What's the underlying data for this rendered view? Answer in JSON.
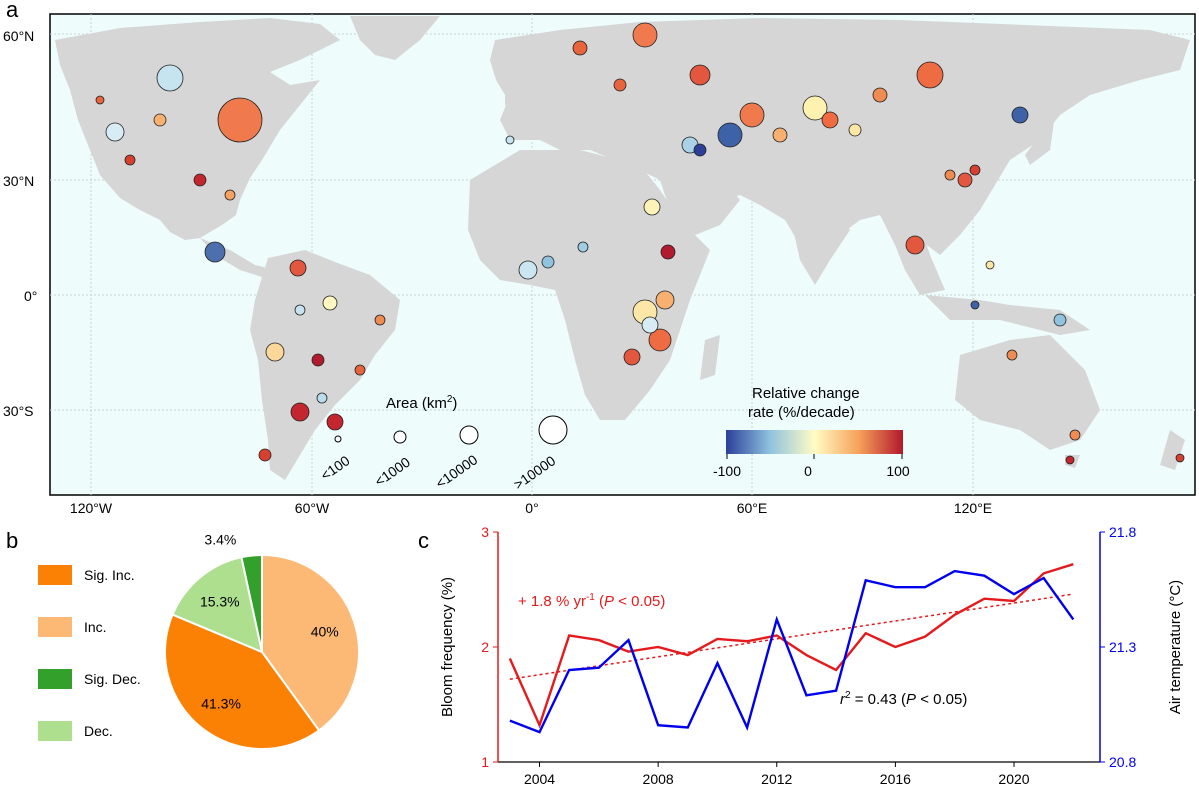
{
  "panel_labels": {
    "a": "a",
    "b": "b",
    "c": "c"
  },
  "map": {
    "lat_labels": [
      "60°N",
      "30°N",
      "0°",
      "30°S"
    ],
    "lon_labels": [
      "120°W",
      "60°W",
      "0°",
      "60°E",
      "120°E"
    ],
    "area_legend": {
      "title": "Area (km",
      "title_sup": "2",
      "title_end": ")",
      "sizes": [
        "<100",
        "<1000",
        "<10000",
        ">10000"
      ]
    },
    "color_legend": {
      "title_line1": "Relative change",
      "title_line2": "rate (%/decade)",
      "ticks": [
        "-100",
        "0",
        "100"
      ]
    },
    "colors": {
      "ocean": "#eefcfc",
      "land": "#d6d6d6",
      "strong_dec": "#2b3f99",
      "dec": "#8fc3df",
      "neutral": "#fffcc4",
      "inc": "#f5a25a",
      "strong_inc": "#b2182b"
    }
  },
  "chart_data": [
    {
      "type": "pie",
      "legend": [
        "Sig. Inc.",
        "Inc.",
        "Sig. Dec.",
        "Dec."
      ],
      "slices": [
        {
          "label": "Inc.",
          "value": 40.0,
          "text": "40%",
          "color": "#fbb975"
        },
        {
          "label": "Sig. Inc.",
          "value": 41.3,
          "text": "41.3%",
          "color": "#fb8104"
        },
        {
          "label": "Dec.",
          "value": 15.3,
          "text": "15.3%",
          "color": "#addf8f"
        },
        {
          "label": "Sig. Dec.",
          "value": 3.4,
          "text": "3.4%",
          "color": "#33a02c"
        }
      ]
    },
    {
      "type": "line",
      "x": [
        2003,
        2004,
        2005,
        2006,
        2007,
        2008,
        2009,
        2010,
        2011,
        2012,
        2013,
        2014,
        2015,
        2016,
        2017,
        2018,
        2019,
        2020,
        2021,
        2022
      ],
      "xticks": [
        2004,
        2008,
        2012,
        2016,
        2020
      ],
      "series": [
        {
          "name": "Bloom frequency",
          "axis": "left",
          "color": "#e41a1c",
          "values": [
            1.9,
            1.32,
            2.1,
            2.06,
            1.96,
            2.0,
            1.93,
            2.07,
            2.05,
            2.1,
            1.93,
            1.8,
            2.12,
            2.0,
            2.09,
            2.28,
            2.42,
            2.4,
            2.64,
            2.72
          ]
        },
        {
          "name": "Air temperature",
          "axis": "right",
          "color": "#0000ee",
          "values": [
            20.98,
            20.93,
            21.2,
            21.21,
            21.33,
            20.96,
            20.95,
            21.23,
            20.95,
            21.42,
            21.09,
            21.11,
            21.59,
            21.56,
            21.56,
            21.63,
            21.61,
            21.53,
            21.6,
            21.42
          ]
        }
      ],
      "trend": {
        "color": "#e41a1c",
        "start": [
          2003,
          1.72
        ],
        "end": [
          2022,
          2.46
        ]
      },
      "left_axis": {
        "label": "Bloom frequency (%)",
        "ylim": [
          1,
          3
        ],
        "ticks": [
          "1",
          "2",
          "3"
        ]
      },
      "right_axis": {
        "label": "Air temperature (°C)",
        "ylim": [
          20.8,
          21.8
        ],
        "ticks": [
          "20.8",
          "21.3",
          "21.8"
        ]
      },
      "annotations": {
        "trend_text_a": "+ 1.8 % yr",
        "trend_sup": "-1",
        "trend_text_b": " (",
        "trend_p": "P",
        "trend_text_c": " < 0.05)",
        "r2_r": "r",
        "r2_sup": "2",
        "r2_text": " = 0.43 (",
        "r2_p": "P",
        "r2_end": " < 0.05)"
      }
    }
  ]
}
